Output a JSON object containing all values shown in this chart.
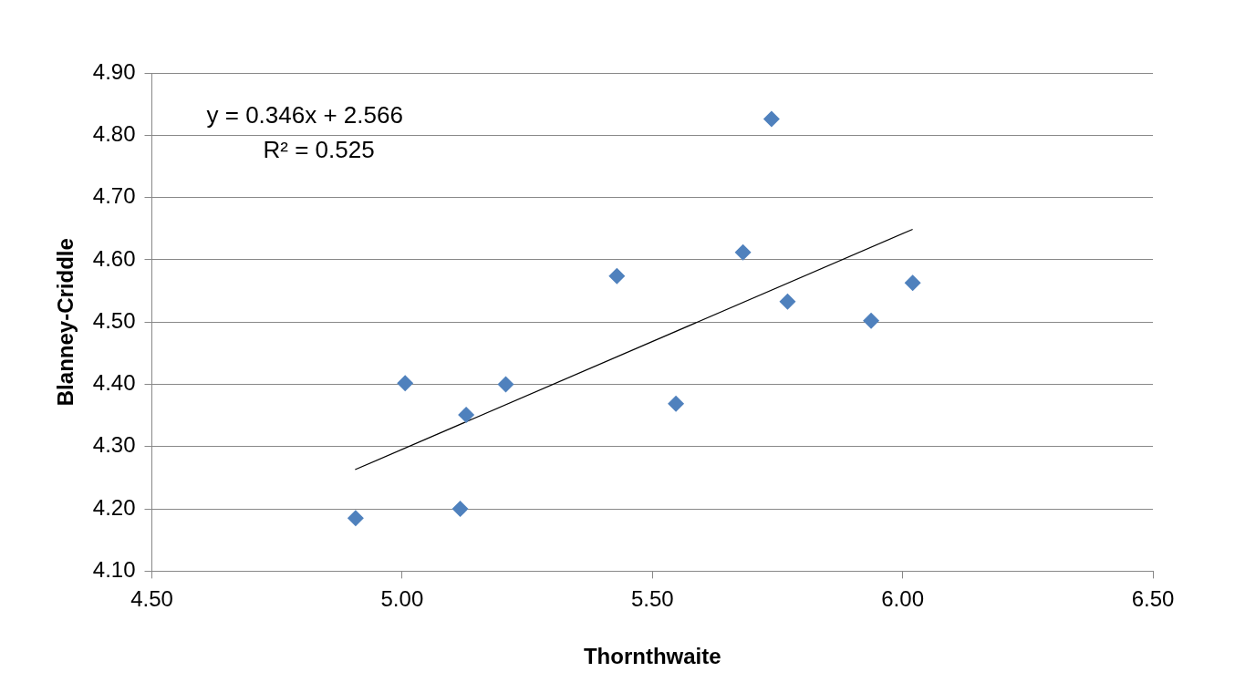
{
  "chart_data": {
    "type": "scatter",
    "xlabel": "Thornthwaite",
    "ylabel": "Blanney-Criddle",
    "annotations": [
      "y = 0.346x + 2.566",
      "R² = 0.525"
    ],
    "series": [
      {
        "type": "scatter",
        "color": "#4f81bd",
        "marker": "diamond",
        "x": [
          4.907,
          5.006,
          5.128,
          5.116,
          5.207,
          5.429,
          5.547,
          5.681,
          5.738,
          5.77,
          5.937,
          6.02
        ],
        "values": [
          4.185,
          4.402,
          4.351,
          4.2,
          4.4,
          4.574,
          4.369,
          4.612,
          4.826,
          4.533,
          4.502,
          4.563
        ]
      },
      {
        "type": "line",
        "color": "#000000",
        "marker": "none",
        "x": [
          4.906,
          6.02
        ],
        "values": [
          4.263,
          4.649
        ]
      }
    ],
    "xlim": [
      4.5,
      6.5
    ],
    "xticks": [
      {
        "value": 4.5,
        "label": "4.50"
      },
      {
        "value": 5,
        "label": "5.00"
      },
      {
        "value": 5.5,
        "label": "5.50"
      },
      {
        "value": 6,
        "label": "6.00"
      },
      {
        "value": 6.5,
        "label": "6.50"
      }
    ],
    "ylim": [
      4.1,
      4.9
    ],
    "yticks": [
      {
        "value": 4.1,
        "label": "4.10"
      },
      {
        "value": 4.2,
        "label": "4.20"
      },
      {
        "value": 4.3,
        "label": "4.30"
      },
      {
        "value": 4.4,
        "label": "4.40"
      },
      {
        "value": 4.5,
        "label": "4.50"
      },
      {
        "value": 4.6,
        "label": "4.60"
      },
      {
        "value": 4.7,
        "label": "4.70"
      },
      {
        "value": 4.8,
        "label": "4.80"
      },
      {
        "value": 4.9,
        "label": "4.90"
      }
    ],
    "grid": "y",
    "legend": false
  }
}
